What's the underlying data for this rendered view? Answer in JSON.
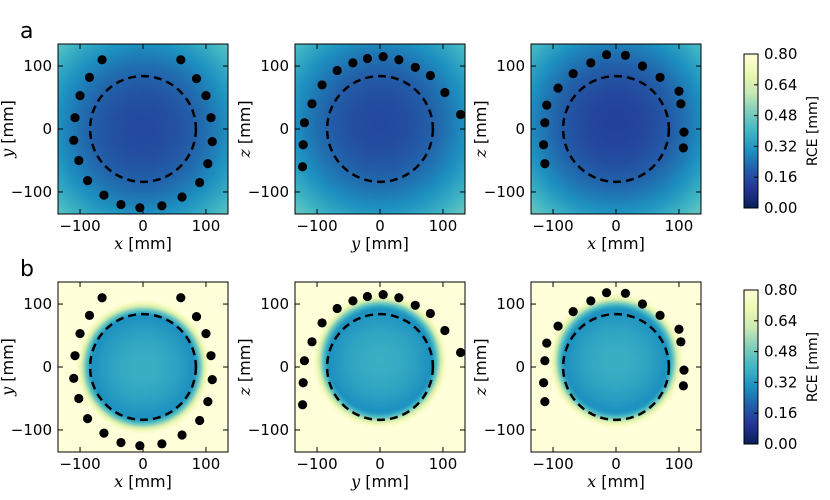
{
  "chart_data": {
    "type": "heatmap",
    "colorbar": {
      "label": "RCE [mm]",
      "ticks": [
        "0.00",
        "0.16",
        "0.32",
        "0.48",
        "0.64",
        "0.80"
      ],
      "range": [
        0,
        0.8
      ],
      "colormap": [
        "#081d58",
        "#253494",
        "#225ea8",
        "#1d91c0",
        "#41b6c4",
        "#7fcdbb",
        "#c7e9b4",
        "#edf8b1",
        "#ffffd9"
      ]
    },
    "circle_radius_mm": 84,
    "x_ticks": [
      "−100",
      "0",
      "100"
    ],
    "y_ticks": [
      "100",
      "0",
      "−100"
    ],
    "xlim": [
      -135,
      135
    ],
    "ylim": [
      -135,
      135
    ],
    "rows": [
      {
        "label": "a",
        "panels": [
          {
            "xvar": "x",
            "yvar": "y",
            "xlabel_unit": "[mm]",
            "ylabel_unit": "[mm]",
            "field": {
              "center_rce": 0.15,
              "edge_rce": 0.45,
              "inside_radius": 1000,
              "outside_rce": 0.45,
              "offset": [
                0,
                0
              ]
            },
            "sensors": [
              [
                -65,
                110
              ],
              [
                -85,
                82
              ],
              [
                -100,
                53
              ],
              [
                -108,
                18
              ],
              [
                -110,
                -18
              ],
              [
                -102,
                -50
              ],
              [
                -88,
                -82
              ],
              [
                -62,
                -105
              ],
              [
                -35,
                -120
              ],
              [
                -5,
                -125
              ],
              [
                30,
                -122
              ],
              [
                62,
                -108
              ],
              [
                90,
                -85
              ],
              [
                103,
                -55
              ],
              [
                110,
                -20
              ],
              [
                108,
                18
              ],
              [
                100,
                53
              ],
              [
                85,
                80
              ],
              [
                60,
                110
              ]
            ]
          },
          {
            "xvar": "y",
            "yvar": "z",
            "xlabel_unit": "[mm]",
            "ylabel_unit": "[mm]",
            "field": {
              "center_rce": 0.15,
              "edge_rce": 0.45,
              "inside_radius": 1000,
              "outside_rce": 0.45,
              "offset": [
                0,
                10
              ]
            },
            "sensors": [
              [
                -120,
                10
              ],
              [
                -122,
                -25
              ],
              [
                -123,
                -60
              ],
              [
                -108,
                40
              ],
              [
                -92,
                70
              ],
              [
                -68,
                93
              ],
              [
                -43,
                105
              ],
              [
                -20,
                112
              ],
              [
                5,
                115
              ],
              [
                30,
                110
              ],
              [
                56,
                98
              ],
              [
                80,
                85
              ],
              [
                103,
                58
              ],
              [
                128,
                23
              ]
            ]
          },
          {
            "xvar": "x",
            "yvar": "z",
            "xlabel_unit": "[mm]",
            "ylabel_unit": "[mm]",
            "field": {
              "center_rce": 0.13,
              "edge_rce": 0.45,
              "inside_radius": 1000,
              "outside_rce": 0.45,
              "offset": [
                0,
                10
              ]
            },
            "sensors": [
              [
                -110,
                38
              ],
              [
                -113,
                10
              ],
              [
                -115,
                -25
              ],
              [
                -113,
                -55
              ],
              [
                -92,
                65
              ],
              [
                -68,
                88
              ],
              [
                -40,
                105
              ],
              [
                -15,
                118
              ],
              [
                15,
                117
              ],
              [
                42,
                100
              ],
              [
                70,
                82
              ],
              [
                100,
                60
              ],
              [
                108,
                -5
              ],
              [
                103,
                40
              ],
              [
                107,
                -30
              ]
            ]
          }
        ]
      },
      {
        "label": "b",
        "panels": [
          {
            "xvar": "x",
            "yvar": "y",
            "xlabel_unit": "[mm]",
            "ylabel_unit": "[mm]",
            "field": {
              "center_rce": 0.38,
              "edge_rce": 0.3,
              "inside_radius": 80,
              "outside_rce": 0.8,
              "offset": [
                0,
                0
              ]
            },
            "sensors": [
              [
                -65,
                110
              ],
              [
                -85,
                82
              ],
              [
                -100,
                53
              ],
              [
                -108,
                18
              ],
              [
                -110,
                -18
              ],
              [
                -102,
                -50
              ],
              [
                -88,
                -82
              ],
              [
                -62,
                -105
              ],
              [
                -35,
                -120
              ],
              [
                -5,
                -125
              ],
              [
                30,
                -122
              ],
              [
                62,
                -108
              ],
              [
                90,
                -85
              ],
              [
                103,
                -55
              ],
              [
                110,
                -20
              ],
              [
                108,
                18
              ],
              [
                100,
                53
              ],
              [
                85,
                80
              ],
              [
                60,
                110
              ]
            ]
          },
          {
            "xvar": "y",
            "yvar": "z",
            "xlabel_unit": "[mm]",
            "ylabel_unit": "[mm]",
            "field": {
              "center_rce": 0.38,
              "edge_rce": 0.3,
              "inside_radius": 80,
              "outside_rce": 0.8,
              "offset": [
                0,
                10
              ]
            },
            "sensors": [
              [
                -120,
                10
              ],
              [
                -122,
                -25
              ],
              [
                -123,
                -60
              ],
              [
                -108,
                40
              ],
              [
                -92,
                70
              ],
              [
                -68,
                93
              ],
              [
                -43,
                105
              ],
              [
                -20,
                112
              ],
              [
                5,
                115
              ],
              [
                30,
                110
              ],
              [
                56,
                98
              ],
              [
                80,
                85
              ],
              [
                103,
                58
              ],
              [
                128,
                23
              ]
            ]
          },
          {
            "xvar": "x",
            "yvar": "z",
            "xlabel_unit": "[mm]",
            "ylabel_unit": "[mm]",
            "field": {
              "center_rce": 0.38,
              "edge_rce": 0.3,
              "inside_radius": 80,
              "outside_rce": 0.8,
              "offset": [
                0,
                10
              ]
            },
            "sensors": [
              [
                -110,
                38
              ],
              [
                -113,
                10
              ],
              [
                -115,
                -25
              ],
              [
                -113,
                -55
              ],
              [
                -92,
                65
              ],
              [
                -68,
                88
              ],
              [
                -40,
                105
              ],
              [
                -15,
                118
              ],
              [
                15,
                117
              ],
              [
                42,
                100
              ],
              [
                70,
                82
              ],
              [
                100,
                60
              ],
              [
                108,
                -5
              ],
              [
                103,
                40
              ],
              [
                107,
                -30
              ]
            ]
          }
        ]
      }
    ]
  }
}
